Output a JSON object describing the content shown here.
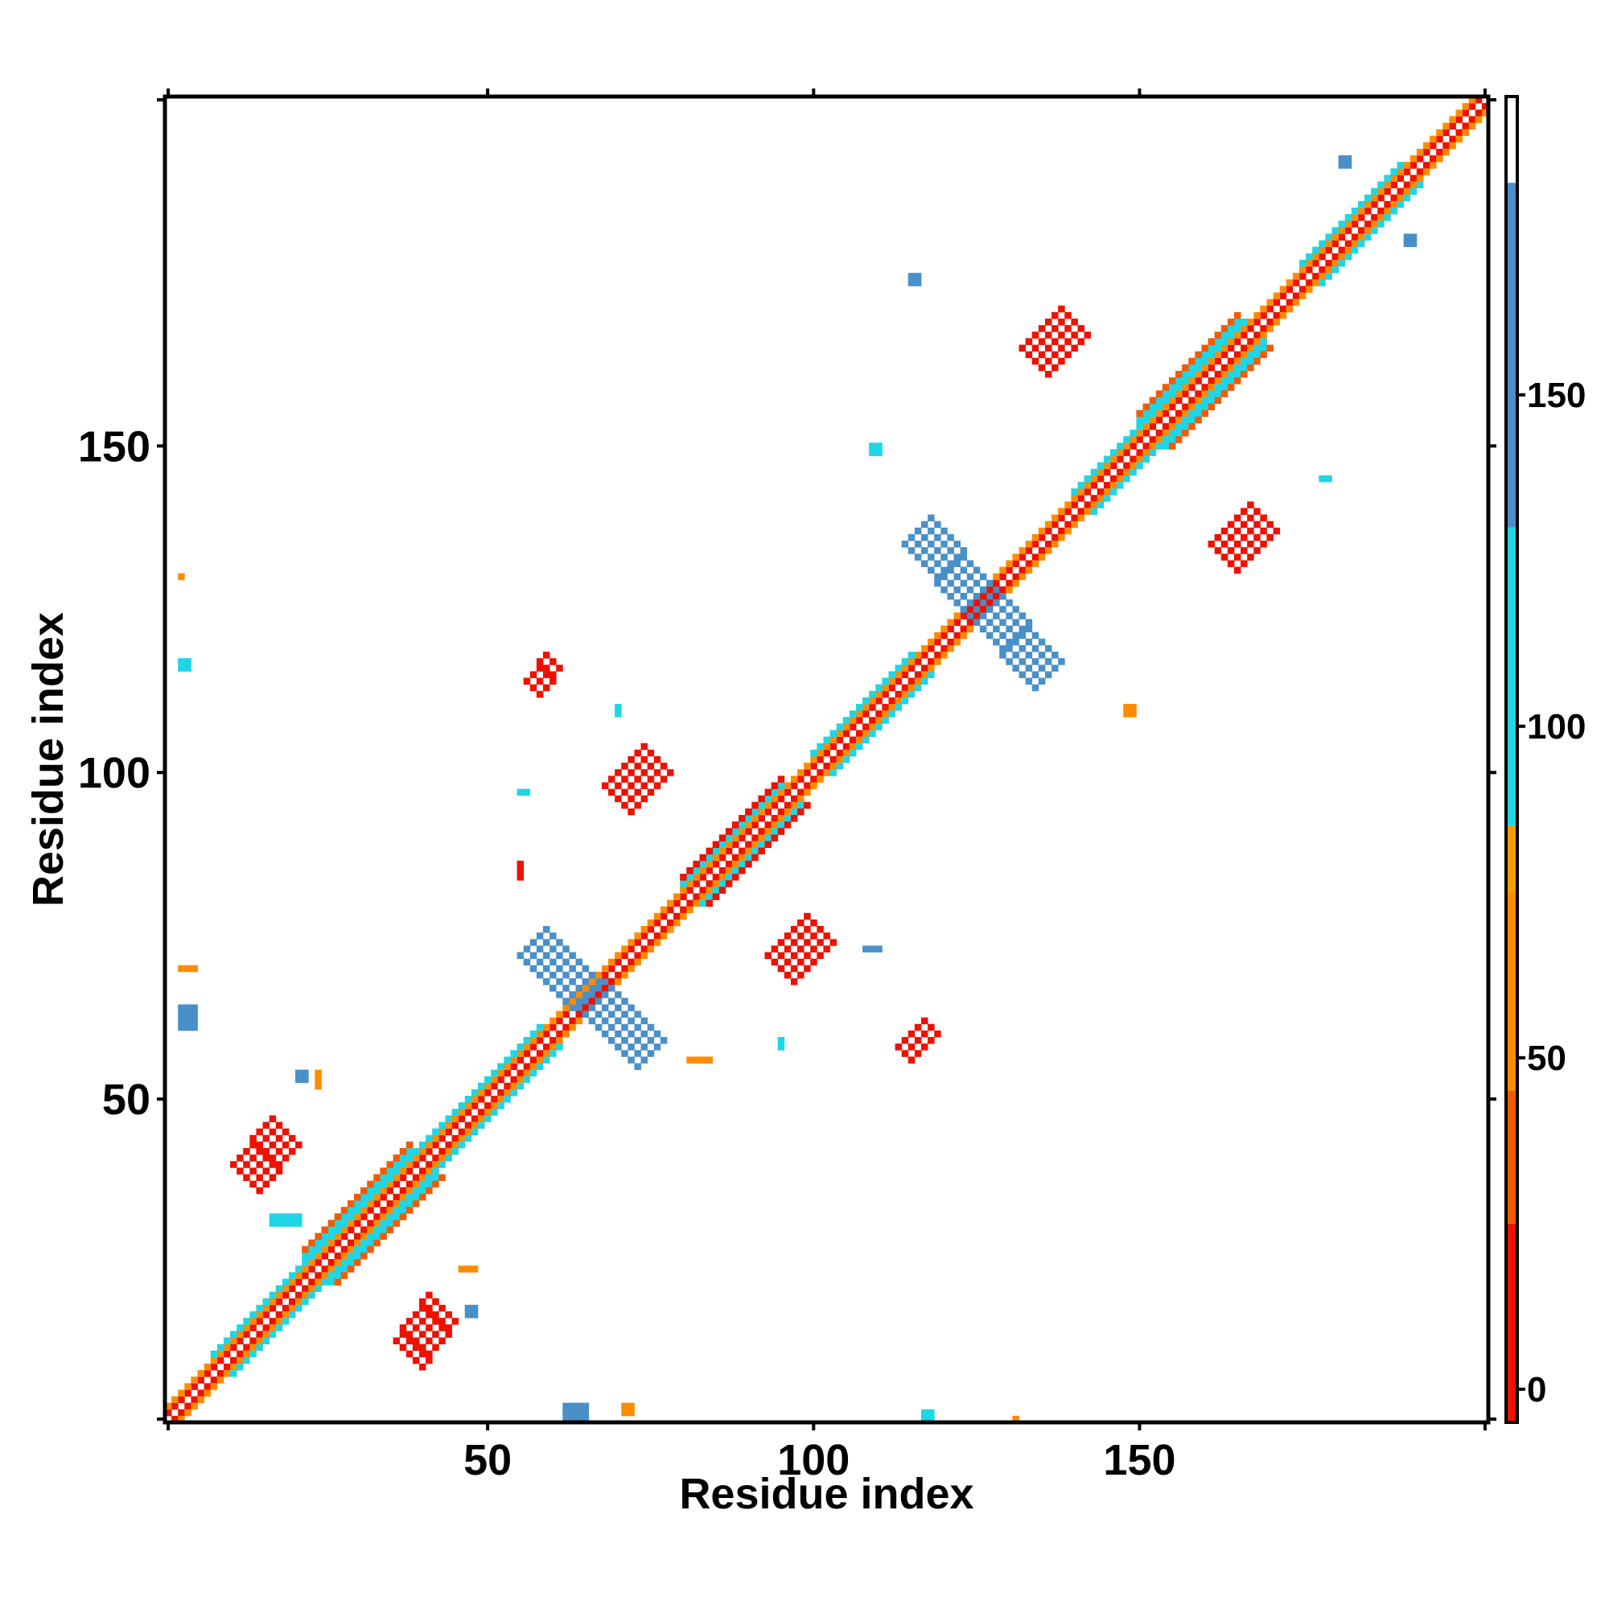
{
  "chart_data": {
    "type": "heatmap",
    "title": "",
    "xlabel": "Residue index",
    "ylabel": "Residue index",
    "xlim": [
      1,
      203
    ],
    "ylim": [
      1,
      203
    ],
    "x_ticks": [
      50,
      100,
      150
    ],
    "y_ticks": [
      50,
      100,
      150
    ],
    "colorbar": {
      "ticks": [
        0,
        50,
        100,
        150
      ],
      "range": [
        -5,
        195
      ],
      "bands": [
        {
          "from": -5,
          "to": 25,
          "color": "#ee1100"
        },
        {
          "from": 25,
          "to": 45,
          "color": "#f55a00"
        },
        {
          "from": 45,
          "to": 75,
          "color": "#ff8c00"
        },
        {
          "from": 75,
          "to": 85,
          "color": "#f2a000"
        },
        {
          "from": 85,
          "to": 130,
          "color": "#1fd6e6"
        },
        {
          "from": 130,
          "to": 182,
          "color": "#4a90c8"
        },
        {
          "from": 182,
          "to": 195,
          "color": "#ffffff"
        }
      ]
    },
    "regions": [
      {
        "kind": "diag",
        "from": 1,
        "to": 203,
        "value": 183
      },
      {
        "kind": "diag_band",
        "from": 1,
        "to": 203,
        "offset": 1,
        "value": 20
      },
      {
        "kind": "diag_band",
        "from": 1,
        "to": 203,
        "offset": 2,
        "value": 60
      },
      {
        "kind": "diag_band",
        "from": 8,
        "to": 58,
        "offset": 3,
        "value": 105
      },
      {
        "kind": "diag_band",
        "from": 22,
        "to": 38,
        "offset": 4,
        "value": 100
      },
      {
        "kind": "diag_band",
        "from": 22,
        "to": 38,
        "offset": 5,
        "value": 30
      },
      {
        "kind": "diag_band",
        "from": 80,
        "to": 95,
        "offset": 3,
        "value": 100
      },
      {
        "kind": "diag_band",
        "from": 80,
        "to": 95,
        "offset": 4,
        "value": 20
      },
      {
        "kind": "diag_band",
        "from": 100,
        "to": 115,
        "offset": 3,
        "value": 100
      },
      {
        "kind": "diag_band",
        "from": 140,
        "to": 166,
        "offset": 3,
        "value": 100
      },
      {
        "kind": "diag_band",
        "from": 150,
        "to": 165,
        "offset": 4,
        "value": 90
      },
      {
        "kind": "diag_band",
        "from": 150,
        "to": 165,
        "offset": 5,
        "value": 30
      },
      {
        "kind": "diag_band",
        "from": 175,
        "to": 190,
        "offset": 3,
        "value": 100
      },
      {
        "kind": "anti",
        "x0": 57,
        "y0": 74,
        "x1": 75,
        "y1": 57,
        "width": 2,
        "value": 155
      },
      {
        "kind": "anti",
        "x0": 116,
        "y0": 137,
        "x1": 136,
        "y1": 115,
        "width": 2,
        "value": 155
      },
      {
        "kind": "para",
        "x0": 13,
        "y0": 38,
        "x1": 19,
        "y1": 45,
        "width": 2,
        "value": 20
      },
      {
        "kind": "para",
        "x0": 38,
        "y0": 11,
        "x1": 43,
        "y1": 18,
        "width": 2,
        "value": 20
      },
      {
        "kind": "para",
        "x0": 70,
        "y0": 96,
        "x1": 76,
        "y1": 102,
        "width": 2,
        "value": 20
      },
      {
        "kind": "para",
        "x0": 95,
        "y0": 70,
        "x1": 101,
        "y1": 76,
        "width": 2,
        "value": 20
      },
      {
        "kind": "para",
        "x0": 134,
        "y0": 163,
        "x1": 140,
        "y1": 169,
        "width": 2,
        "value": 20
      },
      {
        "kind": "para",
        "x0": 163,
        "y0": 133,
        "x1": 169,
        "y1": 139,
        "width": 2,
        "value": 20
      },
      {
        "kind": "para",
        "x0": 57,
        "y0": 113,
        "x1": 60,
        "y1": 117,
        "width": 1,
        "value": 20
      },
      {
        "kind": "para",
        "x0": 114,
        "y0": 57,
        "x1": 118,
        "y1": 61,
        "width": 1,
        "value": 20
      },
      {
        "kind": "rect",
        "x0": 62,
        "y0": 1,
        "x1": 65,
        "y1": 3,
        "value": 155
      },
      {
        "kind": "rect",
        "x0": 3,
        "y0": 61,
        "x1": 5,
        "y1": 64,
        "value": 155
      },
      {
        "kind": "rect",
        "x0": 3,
        "y0": 116,
        "x1": 4,
        "y1": 117,
        "value": 100
      },
      {
        "kind": "rect",
        "x0": 3,
        "y0": 70,
        "x1": 5,
        "y1": 70,
        "value": 60
      },
      {
        "kind": "rect",
        "x0": 3,
        "y0": 130,
        "x1": 3,
        "y1": 130,
        "value": 60
      },
      {
        "kind": "rect",
        "x0": 17,
        "y0": 31,
        "x1": 21,
        "y1": 32,
        "value": 100
      },
      {
        "kind": "rect",
        "x0": 21,
        "y0": 53,
        "x1": 22,
        "y1": 54,
        "value": 155
      },
      {
        "kind": "rect",
        "x0": 24,
        "y0": 52,
        "x1": 24,
        "y1": 54,
        "value": 60
      },
      {
        "kind": "rect",
        "x0": 46,
        "y0": 24,
        "x1": 48,
        "y1": 24,
        "value": 60
      },
      {
        "kind": "rect",
        "x0": 47,
        "y0": 17,
        "x1": 48,
        "y1": 18,
        "value": 155
      },
      {
        "kind": "rect",
        "x0": 71,
        "y0": 2,
        "x1": 72,
        "y1": 3,
        "value": 60
      },
      {
        "kind": "rect",
        "x0": 55,
        "y0": 84,
        "x1": 55,
        "y1": 86,
        "value": 20
      },
      {
        "kind": "rect",
        "x0": 70,
        "y0": 109,
        "x1": 70,
        "y1": 110,
        "value": 100
      },
      {
        "kind": "rect",
        "x0": 55,
        "y0": 97,
        "x1": 56,
        "y1": 97,
        "value": 100
      },
      {
        "kind": "rect",
        "x0": 81,
        "y0": 56,
        "x1": 84,
        "y1": 56,
        "value": 60
      },
      {
        "kind": "rect",
        "x0": 95,
        "y0": 58,
        "x1": 95,
        "y1": 59,
        "value": 100
      },
      {
        "kind": "rect",
        "x0": 108,
        "y0": 73,
        "x1": 110,
        "y1": 73,
        "value": 155
      },
      {
        "kind": "rect",
        "x0": 109,
        "y0": 149,
        "x1": 110,
        "y1": 150,
        "value": 100
      },
      {
        "kind": "rect",
        "x0": 117,
        "y0": 1,
        "x1": 118,
        "y1": 2,
        "value": 100
      },
      {
        "kind": "rect",
        "x0": 131,
        "y0": 1,
        "x1": 131,
        "y1": 1,
        "value": 60
      },
      {
        "kind": "rect",
        "x0": 148,
        "y0": 109,
        "x1": 149,
        "y1": 110,
        "value": 60
      },
      {
        "kind": "rect",
        "x0": 178,
        "y0": 145,
        "x1": 179,
        "y1": 145,
        "value": 100
      },
      {
        "kind": "rect",
        "x0": 181,
        "y0": 193,
        "x1": 182,
        "y1": 194,
        "value": 155
      },
      {
        "kind": "rect",
        "x0": 191,
        "y0": 181,
        "x1": 192,
        "y1": 182,
        "value": 155
      },
      {
        "kind": "rect",
        "x0": 115,
        "y0": 175,
        "x1": 116,
        "y1": 176,
        "value": 155
      }
    ]
  }
}
